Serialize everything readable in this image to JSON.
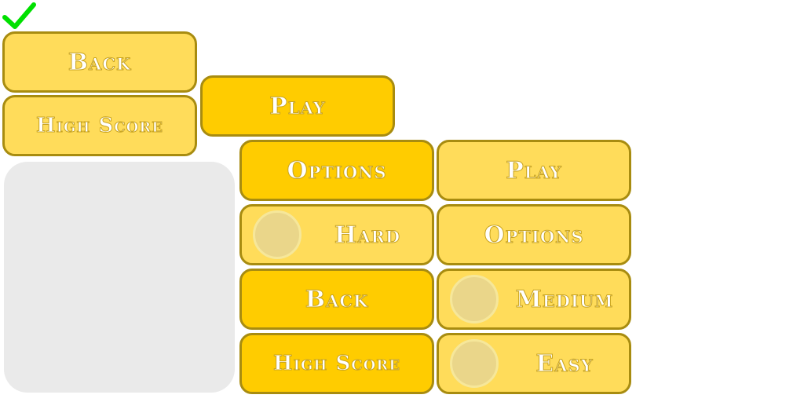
{
  "colors": {
    "button_light": "#ffdc5a",
    "button_dark": "#ffcc00",
    "button_border": "#a88c10",
    "button_text": "#ffffff",
    "panel": "#eaeaea",
    "check": "#00e000"
  },
  "icons": {
    "checkmark": "green-checkmark-icon"
  },
  "column1": {
    "back_label": "Back",
    "high_score_label": "High Score"
  },
  "column2": {
    "play_label": "Play",
    "options_label": "Options",
    "hard_label": "Hard",
    "back_label": "Back",
    "high_score_label": "High Score"
  },
  "column3": {
    "play_label": "Play",
    "options_label": "Options",
    "medium_label": "Medium",
    "easy_label": "Easy"
  }
}
